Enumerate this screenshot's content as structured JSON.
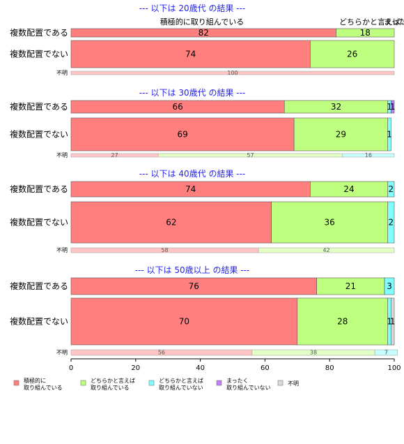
{
  "chart_data": {
    "type": "bar",
    "orientation": "horizontal",
    "stacked": "percent",
    "x_axis": {
      "range": [
        0,
        100
      ],
      "ticks": [
        0,
        20,
        40,
        60,
        80,
        100
      ]
    },
    "grid": false,
    "legend_position": "bottom",
    "header_labels": [
      "積極的に取り組んでいる",
      "どちらかと言えば…",
      "まったく…"
    ],
    "series": [
      {
        "name": "積極的に\n取り組んでいる",
        "color": "#ff7f7f"
      },
      {
        "name": "どちらかと言えば\n取り組んでいる",
        "color": "#bfff7f"
      },
      {
        "name": "どちらかと言えば\n取り組んでいない",
        "color": "#7fffff"
      },
      {
        "name": "まったく\n取り組んでいない",
        "color": "#bf7fff"
      },
      {
        "name": "不明",
        "color": "#d9d9d9"
      }
    ],
    "panels": [
      {
        "title": "--- 以下は 20歳代 の結果 ---",
        "rows": [
          {
            "label": "複数配置である",
            "values": [
              82,
              18,
              0,
              0,
              0
            ]
          },
          {
            "label": "複数配置でない",
            "values": [
              74,
              26,
              0,
              0,
              0
            ]
          },
          {
            "label": "不明",
            "values": [
              100,
              0,
              0,
              0,
              0
            ]
          }
        ]
      },
      {
        "title": "--- 以下は 30歳代 の結果 ---",
        "rows": [
          {
            "label": "複数配置である",
            "values": [
              66,
              32,
              1,
              1,
              0
            ]
          },
          {
            "label": "複数配置でない",
            "values": [
              69,
              29,
              1,
              0,
              0
            ]
          },
          {
            "label": "不明",
            "values": [
              27,
              57,
              16,
              0,
              0
            ]
          }
        ]
      },
      {
        "title": "--- 以下は 40歳代 の結果 ---",
        "rows": [
          {
            "label": "複数配置である",
            "values": [
              74,
              24,
              2,
              0,
              0
            ]
          },
          {
            "label": "複数配置でない",
            "values": [
              62,
              36,
              2,
              0,
              0
            ]
          },
          {
            "label": "不明",
            "values": [
              58,
              42,
              0,
              0,
              0
            ]
          }
        ]
      },
      {
        "title": "--- 以下は 50歳以上 の結果 ---",
        "rows": [
          {
            "label": "複数配置である",
            "values": [
              76,
              21,
              3,
              0,
              0
            ]
          },
          {
            "label": "複数配置でない",
            "values": [
              70,
              28,
              1,
              0,
              1
            ]
          },
          {
            "label": "不明",
            "values": [
              56,
              38,
              7,
              0,
              0
            ]
          }
        ]
      }
    ]
  }
}
